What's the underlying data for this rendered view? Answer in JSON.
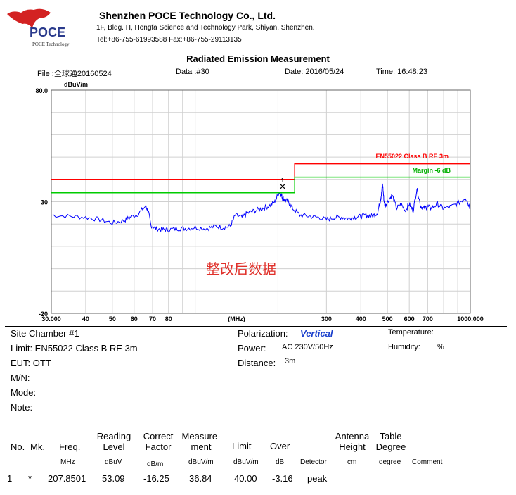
{
  "header": {
    "logo_text": "POCE",
    "logo_subtext": "POCE Technology",
    "company_name": "Shenzhen POCE Technology Co., Ltd.",
    "address": "1F, Bldg. H, Hongfa Science and Technology Park, Shiyan, Shenzhen.",
    "contact": "Tel:+86-755-61993588   Fax:+86-755-29113135"
  },
  "report": {
    "title": "Radiated Emission Measurement",
    "file": "File :全球通20160524",
    "data": "Data :#30",
    "date": "Date: 2016/05/24",
    "time": "Time: 16:48:23"
  },
  "chart_data": {
    "type": "line",
    "yunit": "dBuV/m",
    "xunit": "(MHz)",
    "xscale": "log",
    "xlim": [
      30,
      1000
    ],
    "ylim": [
      -20,
      80
    ],
    "ytick_labels": [
      "80.0",
      "30",
      "-20"
    ],
    "xtick_labels": [
      "30.000",
      "40",
      "50",
      "60",
      "70",
      "80",
      "(MHz)",
      "300",
      "400",
      "500",
      "600",
      "700",
      "1000.000"
    ],
    "watermark": "整改后数据",
    "limit_line": {
      "label": "EN55022 Class B RE 3m",
      "color": "#ff0000",
      "points": [
        [
          30,
          40
        ],
        [
          230,
          40
        ],
        [
          230,
          47
        ],
        [
          1000,
          47
        ]
      ]
    },
    "margin_line": {
      "label": "Margin -6 dB",
      "color": "#00cc00",
      "points": [
        [
          30,
          34
        ],
        [
          230,
          34
        ],
        [
          230,
          41
        ],
        [
          1000,
          41
        ]
      ]
    },
    "series": [
      {
        "color": "#0000ff",
        "x": [
          30,
          35,
          40,
          45,
          50,
          55,
          58,
          62,
          66,
          67.5,
          69,
          72,
          76,
          80,
          86,
          92,
          100,
          110,
          118,
          126,
          134,
          140,
          148,
          155,
          165,
          175,
          185,
          195,
          202,
          206,
          208,
          212,
          218,
          226,
          240,
          260,
          280,
          300,
          320,
          340,
          360,
          380,
          400,
          420,
          440,
          460,
          470,
          475,
          480,
          485,
          490,
          500,
          520,
          540,
          560,
          580,
          600,
          620,
          640,
          660,
          680,
          700,
          720,
          760,
          800,
          860,
          920,
          960,
          1000
        ],
        "values": [
          24,
          23.5,
          23,
          22,
          20.5,
          21.5,
          23,
          24.5,
          28,
          26,
          19.5,
          18,
          17.5,
          17.5,
          18,
          18,
          18.5,
          18,
          19,
          18.5,
          19,
          24,
          23,
          25,
          26,
          27,
          28,
          30,
          34.5,
          33,
          31.5,
          31,
          30,
          27,
          24,
          23.5,
          23,
          22,
          23,
          23,
          22.5,
          23,
          23.5,
          24,
          23.5,
          25,
          30,
          33,
          38,
          31,
          28,
          30,
          33,
          27,
          29,
          26,
          29,
          26,
          36,
          28,
          27,
          28,
          27,
          29,
          27,
          28,
          30,
          32,
          27
        ]
      }
    ],
    "markers": [
      {
        "label": "1",
        "x": 207.8501,
        "y": 36.84,
        "symbol": "x"
      }
    ]
  },
  "info": {
    "site": "Site  Chamber #1",
    "limit": "Limit:  EN55022 Class B RE 3m",
    "eut": "EUT:  OTT",
    "mn": "M/N:",
    "mode": "Mode:",
    "note": "Note:",
    "polarization_label": "Polarization:",
    "polarization_value": "Vertical",
    "power_label": "Power:",
    "power_value": "AC 230V/50Hz",
    "distance_label": "Distance:",
    "distance_value": "3m",
    "temperature_label": "Temperature:",
    "humidity_label": "Humidity:",
    "humidity_unit": "%"
  },
  "table": {
    "headers": [
      {
        "key": "no",
        "text": "No."
      },
      {
        "key": "mk",
        "text": "Mk."
      },
      {
        "key": "freq",
        "text": "Freq."
      },
      {
        "key": "reading",
        "line1": "Reading",
        "line2": "Level"
      },
      {
        "key": "correct",
        "line1": "Correct",
        "line2": "Factor"
      },
      {
        "key": "measure",
        "line1": "Measure-",
        "line2": "ment"
      },
      {
        "key": "limit",
        "text": "Limit"
      },
      {
        "key": "over",
        "text": "Over"
      },
      {
        "key": "antenna",
        "line1": "Antenna",
        "line2": "Height"
      },
      {
        "key": "table",
        "line1": "Table",
        "line2": "Degree"
      }
    ],
    "units": [
      "MHz",
      "dBuV",
      "dB/m",
      "dBuV/m",
      "dBuV/m",
      "dB",
      "Detector",
      "cm",
      "degree",
      "Comment"
    ],
    "rows": [
      [
        "1",
        "*",
        "207.8501",
        "53.09",
        "-16.25",
        "36.84",
        "40.00",
        "-3.16",
        "peak",
        "",
        "",
        ""
      ]
    ]
  }
}
